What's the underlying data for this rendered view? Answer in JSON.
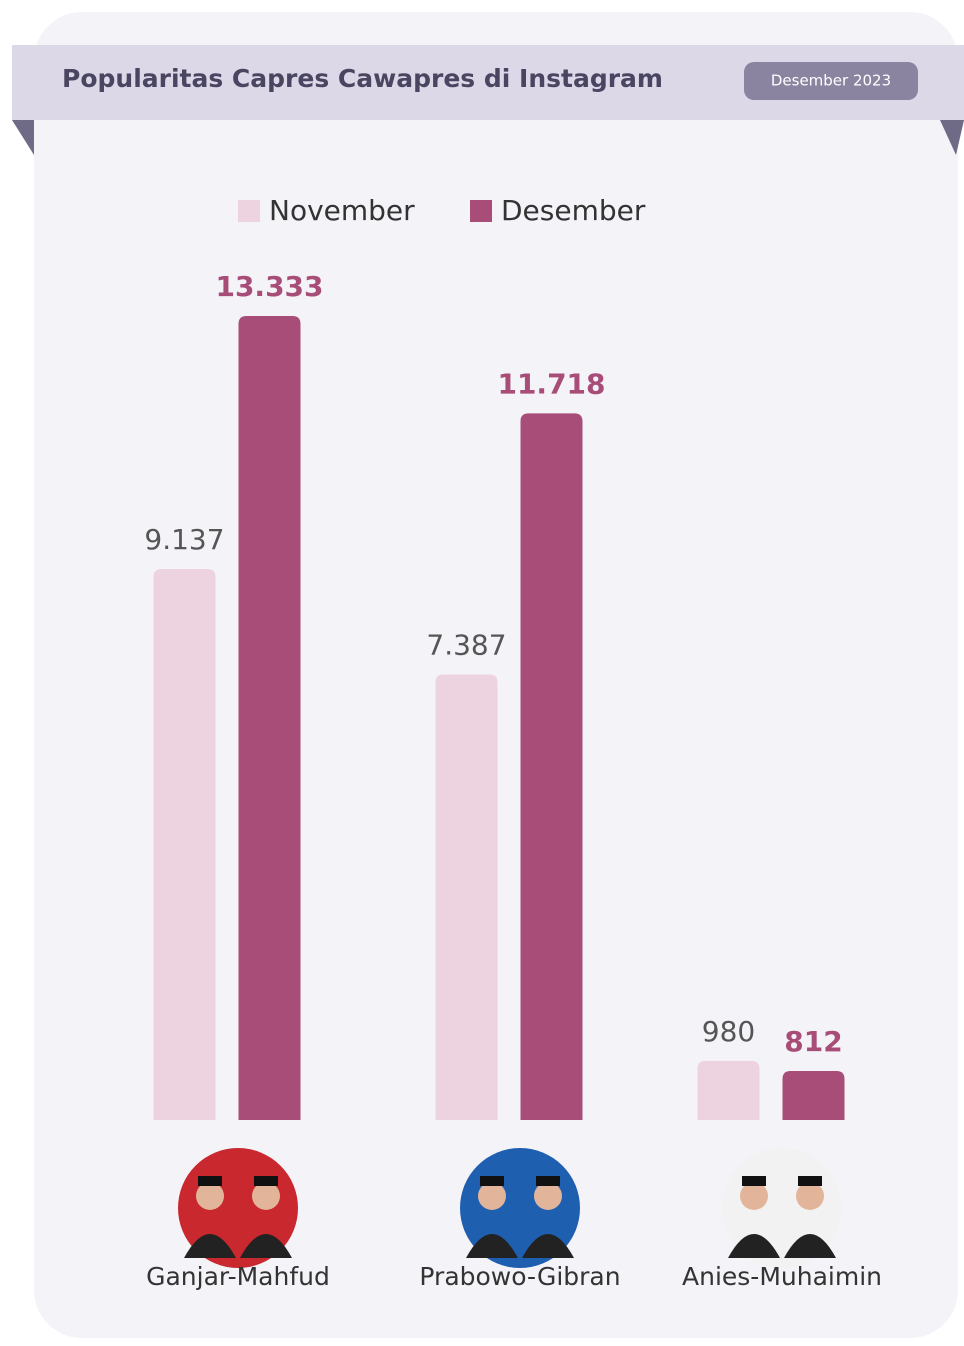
{
  "chart_data": {
    "type": "bar",
    "title": "Popularitas Capres Cawapres di Instagram",
    "date_label": "Desember 2023",
    "categories": [
      "Ganjar-Mahfud",
      "Prabowo-Gibran",
      "Anies-Muhaimin"
    ],
    "series": [
      {
        "name": "November",
        "color": "#ecd3df",
        "label_color": "#555555",
        "values": [
          9137,
          7387,
          980
        ],
        "value_labels": [
          "9.137",
          "7.387",
          "980"
        ]
      },
      {
        "name": "Desember",
        "color": "#a84c78",
        "label_color": "#a84c78",
        "values": [
          13333,
          11718,
          812
        ],
        "value_labels": [
          "13.333",
          "11.718",
          "812"
        ]
      }
    ],
    "legend": "top"
  }
}
